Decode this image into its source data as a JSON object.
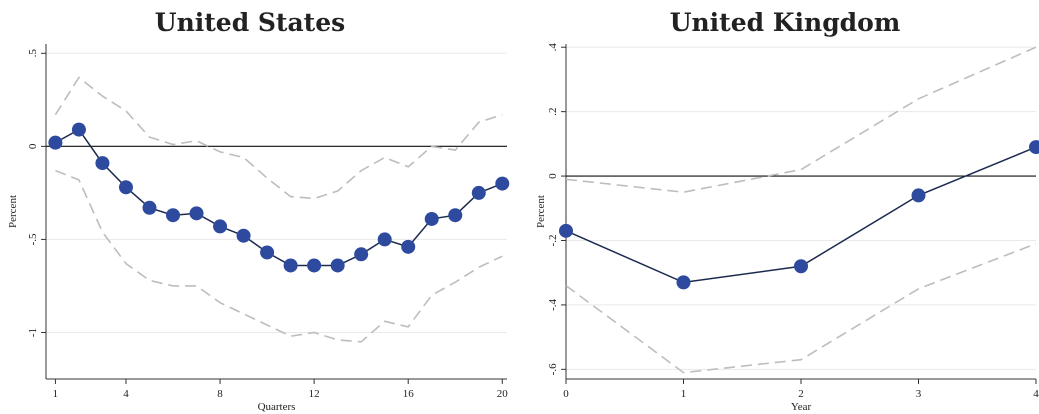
{
  "chart_data": [
    {
      "type": "line",
      "title": "United States",
      "xlabel": "Quarters",
      "ylabel": "Percent",
      "xlim": [
        0.6,
        20.2
      ],
      "ylim": [
        -1.25,
        0.55
      ],
      "xticks": [
        1,
        4,
        8,
        12,
        16,
        20
      ],
      "xtick_labels": [
        "1",
        "4",
        "8",
        "12",
        "16",
        "20"
      ],
      "yticks": [
        0.5,
        0,
        -0.5,
        -1
      ],
      "ytick_labels": [
        ".5",
        "0",
        "-.5",
        "-1"
      ],
      "zero_line": true,
      "grid": "horizontal",
      "series": [
        {
          "role": "estimate",
          "color": "#2e4a9e",
          "x": [
            1,
            2,
            3,
            4,
            5,
            6,
            7,
            8,
            9,
            10,
            11,
            12,
            13,
            14,
            15,
            16,
            17,
            18,
            19,
            20
          ],
          "y": [
            0.02,
            0.09,
            -0.09,
            -0.22,
            -0.33,
            -0.37,
            -0.36,
            -0.43,
            -0.48,
            -0.57,
            -0.64,
            -0.64,
            -0.64,
            -0.58,
            -0.5,
            -0.54,
            -0.39,
            -0.37,
            -0.25,
            -0.2
          ]
        },
        {
          "role": "upper_band",
          "color": "#bdbdbd",
          "x": [
            1,
            2,
            3,
            4,
            5,
            6,
            7,
            8,
            9,
            10,
            11,
            12,
            13,
            14,
            15,
            16,
            17,
            18,
            19,
            20
          ],
          "y": [
            0.17,
            0.37,
            0.27,
            0.19,
            0.05,
            0.01,
            0.03,
            -0.03,
            -0.06,
            -0.17,
            -0.27,
            -0.28,
            -0.24,
            -0.13,
            -0.06,
            -0.11,
            0.0,
            -0.02,
            0.13,
            0.17
          ]
        },
        {
          "role": "lower_band",
          "color": "#bdbdbd",
          "x": [
            1,
            2,
            3,
            4,
            5,
            6,
            7,
            8,
            9,
            10,
            11,
            12,
            13,
            14,
            15,
            16,
            17,
            18,
            19,
            20
          ],
          "y": [
            -0.13,
            -0.18,
            -0.46,
            -0.63,
            -0.72,
            -0.75,
            -0.75,
            -0.84,
            -0.9,
            -0.96,
            -1.02,
            -1.0,
            -1.04,
            -1.05,
            -0.94,
            -0.97,
            -0.8,
            -0.73,
            -0.65,
            -0.59
          ]
        }
      ]
    },
    {
      "type": "line",
      "title": "United Kingdom",
      "xlabel": "Year",
      "ylabel": "Percent",
      "xlim": [
        0,
        4
      ],
      "ylim": [
        -0.63,
        0.41
      ],
      "xticks": [
        0,
        1,
        2,
        3,
        4
      ],
      "xtick_labels": [
        "0",
        "1",
        "2",
        "3",
        "4"
      ],
      "yticks": [
        0.4,
        0.2,
        0,
        -0.2,
        -0.4,
        -0.6
      ],
      "ytick_labels": [
        ".4",
        ".2",
        "0",
        "-.2",
        "-.4",
        "-.6"
      ],
      "zero_line": true,
      "grid": "horizontal",
      "series": [
        {
          "role": "estimate",
          "color": "#2e4a9e",
          "x": [
            0,
            1,
            2,
            3,
            4
          ],
          "y": [
            -0.17,
            -0.33,
            -0.28,
            -0.06,
            0.09
          ]
        },
        {
          "role": "upper_band",
          "color": "#bdbdbd",
          "x": [
            0,
            1,
            2,
            3,
            4
          ],
          "y": [
            -0.01,
            -0.05,
            0.02,
            0.24,
            0.4
          ]
        },
        {
          "role": "lower_band",
          "color": "#bdbdbd",
          "x": [
            0,
            1,
            2,
            3,
            4
          ],
          "y": [
            -0.34,
            -0.61,
            -0.57,
            -0.35,
            -0.21
          ]
        }
      ]
    }
  ]
}
